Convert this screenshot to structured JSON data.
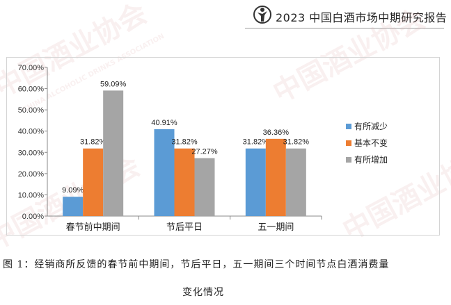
{
  "header": {
    "title": "2023 中国白酒市场中期研究报告"
  },
  "caption": {
    "line1": "图 1：经销商所反馈的春节前中期间，节后平日，五一期间三个时间节点白酒消费量",
    "line2": "变化情况"
  },
  "watermark": {
    "text": "中国酒业协会",
    "subtext": "CHINA ALCOHOLIC DRINKS ASSOCIATION"
  },
  "chart_data": {
    "type": "bar",
    "categories": [
      "春节前中期间",
      "节后平日",
      "五一期间"
    ],
    "series": [
      {
        "name": "有所减少",
        "values": [
          9.09,
          40.91,
          31.82
        ],
        "labels": [
          "9.09%",
          "40.91%",
          "31.82%"
        ],
        "color": "#5b9bd5"
      },
      {
        "name": "基本不变",
        "values": [
          31.82,
          31.82,
          36.36
        ],
        "labels": [
          "31.82%",
          "31.82%",
          "36.36%"
        ],
        "color": "#ed7d31"
      },
      {
        "name": "有所增加",
        "values": [
          59.09,
          27.27,
          31.82
        ],
        "labels": [
          "59.09%",
          "27.27%",
          "31.82%"
        ],
        "color": "#a5a5a5"
      }
    ],
    "yticks": [
      "0.00%",
      "10.00%",
      "20.00%",
      "30.00%",
      "40.00%",
      "50.00%",
      "60.00%",
      "70.00%"
    ],
    "ylim": [
      0,
      70
    ],
    "grid": false,
    "legend_position": "right"
  }
}
